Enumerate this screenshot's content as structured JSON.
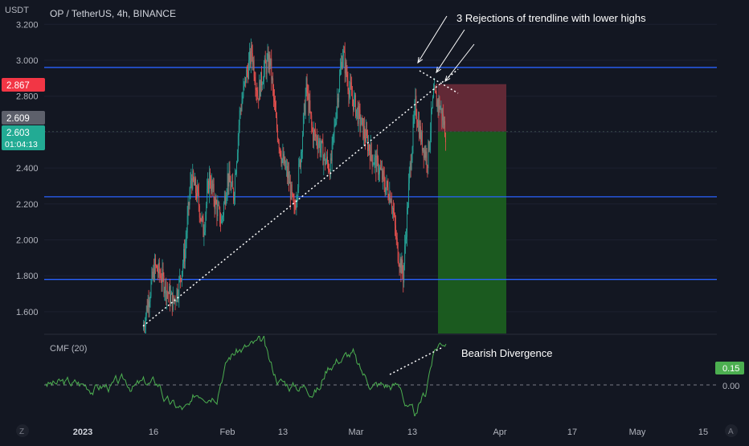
{
  "header": {
    "currency_label": "USDT",
    "symbol_title": "OP / TetherUS, 4h, BINANCE"
  },
  "price_badges": {
    "stop_price": "2.867",
    "mid_price": "2.609",
    "last_price": "2.603",
    "countdown": "01:04:13"
  },
  "annotations": {
    "rejections": "3 Rejections of trendline with lower highs",
    "divergence": "Bearish Divergence"
  },
  "indicator": {
    "title": "CMF (20)",
    "value_badge": "0.15",
    "zero_label": "0.00"
  },
  "corner_icons": {
    "left": "Z",
    "right": "A"
  },
  "colors": {
    "background": "#131722",
    "bull_candle": "#26a69a",
    "bear_candle": "#ef5350",
    "level_line": "#2962ff",
    "cmf_line": "#4caf50",
    "stop_zone": "#6b2b38",
    "target_zone": "#1b5e20",
    "text": "#b2b5be"
  },
  "chart_data": [
    {
      "type": "candlestick",
      "title": "OP / TetherUS, 4h, BINANCE",
      "ylabel": "USDT",
      "ylim": [
        1.45,
        3.3
      ],
      "y_ticks": [
        "3.200",
        "3.000",
        "2.800",
        "2.600",
        "2.400",
        "2.200",
        "2.000",
        "1.800",
        "1.600"
      ],
      "x_ticks": [
        "2023",
        "16",
        "Feb",
        "13",
        "Mar",
        "13",
        "Apr",
        "17",
        "May",
        "15"
      ],
      "close_path": [
        [
          1,
          1.5
        ],
        [
          2,
          1.68
        ],
        [
          3,
          1.85
        ],
        [
          4,
          1.8
        ],
        [
          5,
          1.72
        ],
        [
          6,
          1.65
        ],
        [
          7,
          1.75
        ],
        [
          8,
          1.95
        ],
        [
          9,
          2.35
        ],
        [
          10,
          2.25
        ],
        [
          11,
          2.05
        ],
        [
          12,
          2.35
        ],
        [
          13,
          2.2
        ],
        [
          14,
          2.1
        ],
        [
          15,
          2.35
        ],
        [
          16,
          2.25
        ],
        [
          17,
          2.7
        ],
        [
          18,
          2.9
        ],
        [
          19,
          3.05
        ],
        [
          20,
          2.8
        ],
        [
          21,
          2.95
        ],
        [
          22,
          3.0
        ],
        [
          23,
          2.65
        ],
        [
          24,
          2.45
        ],
        [
          25,
          2.35
        ],
        [
          26,
          2.15
        ],
        [
          27,
          2.45
        ],
        [
          28,
          2.85
        ],
        [
          29,
          2.6
        ],
        [
          30,
          2.55
        ],
        [
          31,
          2.45
        ],
        [
          32,
          2.4
        ],
        [
          33,
          2.75
        ],
        [
          34,
          3.05
        ],
        [
          35,
          2.85
        ],
        [
          36,
          2.75
        ],
        [
          37,
          2.65
        ],
        [
          38,
          2.55
        ],
        [
          39,
          2.45
        ],
        [
          40,
          2.4
        ],
        [
          41,
          2.3
        ],
        [
          42,
          2.25
        ],
        [
          43,
          1.95
        ],
        [
          44,
          1.8
        ],
        [
          45,
          2.35
        ],
        [
          46,
          2.75
        ],
        [
          47,
          2.55
        ],
        [
          48,
          2.45
        ],
        [
          49,
          2.8
        ],
        [
          50,
          2.75
        ],
        [
          51,
          2.6
        ]
      ],
      "horizontal_levels": [
        2.96,
        2.24,
        1.78
      ],
      "trendline": {
        "from": [
          1,
          1.52
        ],
        "to": [
          53,
          2.95
        ]
      },
      "position": {
        "stop": 2.867,
        "entry": 2.603,
        "target": 1.45
      }
    },
    {
      "type": "line",
      "title": "CMF (20)",
      "y_ticks": [
        "0.15",
        "0.00"
      ],
      "zero_line": 0.0,
      "latest_value": 0.15
    }
  ]
}
